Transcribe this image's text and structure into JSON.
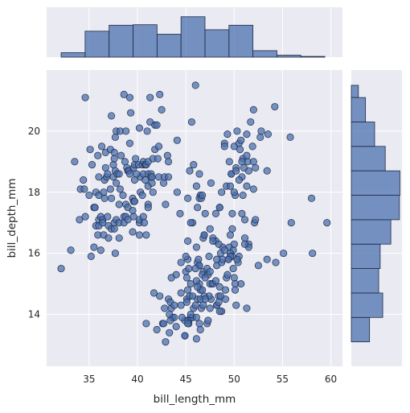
{
  "chart_data": {
    "type": "scatter",
    "subtype": "jointplot",
    "xlabel": "bill_length_mm",
    "ylabel": "bill_depth_mm",
    "xlim": [
      30.6,
      61.2
    ],
    "ylim": [
      12.3,
      22.0
    ],
    "xticks": [
      35,
      40,
      45,
      50,
      55,
      60
    ],
    "yticks": [
      14,
      16,
      18,
      20
    ],
    "grid": true,
    "colors": {
      "marker": "#4c72b0",
      "edge": "#1f2a44",
      "panel": "#eaeaf2",
      "grid": "#ffffff"
    },
    "points": [
      [
        32.1,
        15.5
      ],
      [
        33.1,
        16.1
      ],
      [
        33.5,
        19.0
      ],
      [
        34.0,
        17.1
      ],
      [
        34.1,
        18.1
      ],
      [
        34.4,
        18.4
      ],
      [
        34.5,
        18.1
      ],
      [
        34.6,
        21.1
      ],
      [
        34.6,
        17.2
      ],
      [
        35.0,
        17.9
      ],
      [
        35.1,
        19.4
      ],
      [
        35.2,
        15.9
      ],
      [
        35.3,
        18.9
      ],
      [
        35.5,
        16.2
      ],
      [
        35.5,
        17.5
      ],
      [
        35.6,
        17.5
      ],
      [
        35.7,
        16.9
      ],
      [
        35.7,
        18.0
      ],
      [
        35.9,
        19.2
      ],
      [
        35.9,
        16.6
      ],
      [
        36.0,
        18.5
      ],
      [
        36.0,
        17.9
      ],
      [
        36.0,
        17.1
      ],
      [
        36.0,
        16.9
      ],
      [
        36.2,
        17.2
      ],
      [
        36.2,
        16.1
      ],
      [
        36.3,
        19.5
      ],
      [
        36.4,
        17.1
      ],
      [
        36.4,
        17.0
      ],
      [
        36.5,
        18.0
      ],
      [
        36.5,
        16.6
      ],
      [
        36.6,
        17.8
      ],
      [
        36.6,
        18.4
      ],
      [
        36.7,
        19.3
      ],
      [
        36.7,
        18.8
      ],
      [
        36.8,
        18.5
      ],
      [
        36.9,
        18.6
      ],
      [
        37.0,
        16.9
      ],
      [
        37.0,
        16.5
      ],
      [
        37.2,
        18.1
      ],
      [
        37.2,
        19.4
      ],
      [
        37.3,
        20.5
      ],
      [
        37.3,
        17.8
      ],
      [
        37.3,
        16.8
      ],
      [
        37.5,
        18.9
      ],
      [
        37.5,
        18.5
      ],
      [
        37.6,
        19.1
      ],
      [
        37.6,
        17.0
      ],
      [
        37.6,
        19.3
      ],
      [
        37.7,
        18.7
      ],
      [
        37.7,
        16.0
      ],
      [
        37.7,
        19.8
      ],
      [
        37.8,
        18.3
      ],
      [
        37.8,
        17.1
      ],
      [
        37.8,
        20.0
      ],
      [
        37.9,
        18.6
      ],
      [
        38.1,
        18.6
      ],
      [
        38.1,
        17.6
      ],
      [
        38.1,
        16.5
      ],
      [
        38.1,
        17.0
      ],
      [
        38.2,
        18.1
      ],
      [
        38.2,
        20.0
      ],
      [
        38.3,
        19.2
      ],
      [
        38.5,
        17.9
      ],
      [
        38.6,
        21.2
      ],
      [
        38.6,
        17.2
      ],
      [
        38.6,
        17.0
      ],
      [
        38.7,
        19.0
      ],
      [
        38.8,
        17.2
      ],
      [
        38.8,
        20.0
      ],
      [
        38.8,
        17.6
      ],
      [
        38.9,
        18.8
      ],
      [
        39.0,
        17.5
      ],
      [
        39.0,
        18.7
      ],
      [
        39.0,
        17.1
      ],
      [
        39.1,
        18.7
      ],
      [
        39.2,
        19.6
      ],
      [
        39.2,
        18.6
      ],
      [
        39.2,
        21.1
      ],
      [
        39.3,
        20.6
      ],
      [
        39.5,
        17.4
      ],
      [
        39.5,
        16.7
      ],
      [
        39.5,
        17.8
      ],
      [
        39.6,
        17.7
      ],
      [
        39.6,
        18.8
      ],
      [
        39.6,
        17.2
      ],
      [
        39.7,
        18.4
      ],
      [
        39.7,
        17.7
      ],
      [
        39.7,
        18.9
      ],
      [
        39.8,
        19.1
      ],
      [
        40.1,
        18.9
      ],
      [
        40.2,
        17.0
      ],
      [
        40.2,
        20.1
      ],
      [
        40.2,
        17.1
      ],
      [
        40.3,
        18.0
      ],
      [
        40.3,
        18.5
      ],
      [
        40.5,
        17.9
      ],
      [
        40.5,
        18.9
      ],
      [
        40.6,
        18.6
      ],
      [
        40.6,
        17.2
      ],
      [
        40.6,
        19.0
      ],
      [
        40.7,
        17.0
      ],
      [
        40.8,
        18.4
      ],
      [
        40.8,
        18.9
      ],
      [
        40.9,
        16.6
      ],
      [
        40.9,
        18.9
      ],
      [
        41.0,
        20.0
      ],
      [
        41.1,
        17.6
      ],
      [
        41.1,
        18.2
      ],
      [
        41.1,
        19.0
      ],
      [
        41.1,
        18.6
      ],
      [
        41.1,
        17.5
      ],
      [
        41.3,
        20.3
      ],
      [
        41.3,
        21.1
      ],
      [
        41.4,
        18.6
      ],
      [
        41.4,
        18.5
      ],
      [
        41.5,
        18.3
      ],
      [
        41.5,
        18.5
      ],
      [
        41.6,
        18.0
      ],
      [
        41.6,
        19.1
      ],
      [
        41.8,
        19.4
      ],
      [
        41.8,
        20.2
      ],
      [
        42.0,
        20.2
      ],
      [
        42.1,
        19.1
      ],
      [
        42.2,
        18.5
      ],
      [
        42.2,
        19.5
      ],
      [
        42.3,
        21.2
      ],
      [
        42.5,
        20.7
      ],
      [
        42.7,
        18.3
      ],
      [
        42.8,
        18.5
      ],
      [
        42.9,
        17.6
      ],
      [
        43.1,
        19.2
      ],
      [
        43.2,
        18.5
      ],
      [
        43.2,
        19.0
      ],
      [
        44.1,
        18.0
      ],
      [
        44.1,
        19.7
      ],
      [
        45.6,
        20.3
      ],
      [
        45.8,
        18.9
      ],
      [
        46.0,
        21.5
      ],
      [
        45.4,
        18.7
      ],
      [
        46.5,
        17.9
      ],
      [
        47.0,
        17.3
      ],
      [
        47.5,
        16.8
      ],
      [
        46.4,
        18.6
      ],
      [
        45.2,
        17.8
      ],
      [
        46.1,
        18.2
      ],
      [
        45.7,
        17.0
      ],
      [
        46.2,
        17.5
      ],
      [
        46.9,
        16.6
      ],
      [
        45.5,
        17.0
      ],
      [
        46.4,
        17.8
      ],
      [
        48.5,
        17.5
      ],
      [
        46.8,
        16.5
      ],
      [
        47.6,
        18.3
      ],
      [
        48.1,
        16.4
      ],
      [
        46.6,
        17.8
      ],
      [
        47.8,
        16.5
      ],
      [
        49.3,
        19.9
      ],
      [
        49.8,
        17.3
      ],
      [
        50.9,
        19.1
      ],
      [
        51.7,
        20.3
      ],
      [
        49.7,
        18.6
      ],
      [
        50.0,
        19.5
      ],
      [
        50.5,
        19.6
      ],
      [
        49.0,
        19.6
      ],
      [
        51.3,
        18.2
      ],
      [
        52.7,
        19.8
      ],
      [
        50.6,
        19.4
      ],
      [
        51.3,
        19.9
      ],
      [
        52.0,
        18.1
      ],
      [
        50.8,
        18.5
      ],
      [
        51.4,
        19.0
      ],
      [
        50.7,
        19.7
      ],
      [
        52.0,
        19.0
      ],
      [
        49.5,
        19.0
      ],
      [
        50.8,
        19.0
      ],
      [
        53.5,
        19.9
      ],
      [
        52.8,
        20.0
      ],
      [
        54.2,
        20.8
      ],
      [
        51.5,
        18.7
      ],
      [
        49.2,
        18.2
      ],
      [
        50.3,
        20.0
      ],
      [
        51.9,
        19.5
      ],
      [
        50.2,
        18.8
      ],
      [
        50.1,
        17.9
      ],
      [
        51.0,
        18.8
      ],
      [
        49.6,
        18.2
      ],
      [
        50.5,
        18.4
      ],
      [
        49.0,
        19.5
      ],
      [
        52.2,
        18.8
      ],
      [
        48.1,
        17.3
      ],
      [
        48.7,
        18.0
      ],
      [
        49.7,
        18.6
      ],
      [
        50.9,
        17.9
      ],
      [
        46.7,
        17.9
      ],
      [
        48.5,
        17.5
      ],
      [
        51.3,
        19.2
      ],
      [
        52.0,
        20.7
      ],
      [
        53.4,
        18.7
      ],
      [
        55.8,
        19.8
      ],
      [
        58.0,
        17.8
      ],
      [
        50.0,
        18.0
      ],
      [
        50.2,
        18.7
      ],
      [
        51.1,
        17.1
      ],
      [
        46.2,
        14.5
      ],
      [
        48.2,
        14.3
      ],
      [
        45.1,
        14.5
      ],
      [
        46.5,
        14.8
      ],
      [
        49.5,
        16.2
      ],
      [
        50.0,
        15.2
      ],
      [
        45.2,
        14.8
      ],
      [
        48.7,
        14.1
      ],
      [
        50.7,
        15.0
      ],
      [
        43.5,
        14.2
      ],
      [
        46.8,
        15.4
      ],
      [
        45.2,
        15.8
      ],
      [
        48.4,
        14.6
      ],
      [
        49.9,
        16.1
      ],
      [
        47.6,
        14.5
      ],
      [
        46.2,
        15.7
      ],
      [
        46.4,
        15.0
      ],
      [
        43.6,
        13.9
      ],
      [
        49.2,
        15.2
      ],
      [
        46.6,
        14.2
      ],
      [
        47.7,
        15.0
      ],
      [
        48.2,
        15.6
      ],
      [
        46.5,
        13.5
      ],
      [
        46.4,
        15.6
      ],
      [
        40.9,
        13.7
      ],
      [
        49.1,
        14.8
      ],
      [
        42.6,
        13.7
      ],
      [
        44.4,
        17.3
      ],
      [
        44.0,
        13.6
      ],
      [
        44.9,
        13.3
      ],
      [
        45.5,
        13.9
      ],
      [
        45.2,
        13.8
      ],
      [
        43.3,
        13.4
      ],
      [
        45.3,
        13.7
      ],
      [
        44.5,
        14.3
      ],
      [
        46.1,
        13.2
      ],
      [
        47.2,
        13.7
      ],
      [
        50.0,
        16.3
      ],
      [
        48.2,
        14.3
      ],
      [
        50.4,
        15.7
      ],
      [
        54.3,
        15.7
      ],
      [
        58.1,
        16.0
      ],
      [
        49.4,
        15.8
      ],
      [
        55.1,
        16.0
      ],
      [
        50.8,
        17.3
      ],
      [
        59.6,
        17.0
      ],
      [
        55.9,
        17.0
      ],
      [
        52.1,
        17.0
      ],
      [
        48.8,
        16.2
      ],
      [
        49.8,
        16.8
      ],
      [
        53.4,
        15.8
      ],
      [
        52.5,
        15.6
      ],
      [
        50.5,
        15.9
      ],
      [
        51.5,
        16.3
      ],
      [
        50.1,
        15.0
      ],
      [
        49.6,
        16.0
      ],
      [
        48.6,
        16.0
      ],
      [
        47.2,
        15.5
      ],
      [
        45.2,
        16.4
      ],
      [
        48.4,
        16.3
      ],
      [
        47.4,
        14.6
      ],
      [
        51.1,
        16.5
      ],
      [
        52.2,
        17.1
      ],
      [
        45.5,
        15.0
      ],
      [
        46.9,
        14.6
      ],
      [
        49.0,
        16.1
      ],
      [
        47.5,
        15.0
      ],
      [
        47.3,
        13.8
      ],
      [
        46.7,
        15.3
      ],
      [
        43.2,
        14.5
      ],
      [
        45.4,
        14.6
      ],
      [
        45.3,
        13.8
      ],
      [
        43.8,
        13.9
      ],
      [
        42.9,
        13.1
      ],
      [
        46.1,
        15.1
      ],
      [
        47.8,
        15.0
      ],
      [
        42.8,
        14.2
      ],
      [
        45.0,
        15.4
      ],
      [
        45.7,
        13.9
      ],
      [
        46.5,
        14.5
      ],
      [
        47.3,
        15.3
      ],
      [
        44.9,
        13.8
      ],
      [
        48.4,
        14.4
      ],
      [
        45.1,
        14.4
      ],
      [
        46.4,
        15.6
      ],
      [
        47.5,
        14.2
      ],
      [
        42.7,
        13.7
      ],
      [
        43.4,
        14.4
      ],
      [
        46.3,
        15.8
      ],
      [
        49.1,
        14.5
      ],
      [
        48.7,
        15.7
      ],
      [
        44.5,
        15.7
      ],
      [
        45.8,
        14.2
      ],
      [
        50.2,
        14.3
      ],
      [
        47.0,
        15.2
      ],
      [
        40.2,
        16.6
      ],
      [
        36.9,
        17.2
      ],
      [
        50.3,
        15.8
      ],
      [
        37.6,
        16.8
      ],
      [
        51.5,
        16.2
      ],
      [
        39.9,
        18.6
      ],
      [
        46.4,
        13.7
      ],
      [
        48.8,
        15.8
      ],
      [
        44.9,
        13.3
      ],
      [
        48.5,
        14.1
      ],
      [
        45.7,
        14.6
      ],
      [
        42.0,
        13.5
      ],
      [
        43.3,
        14.0
      ],
      [
        45.1,
        15.2
      ],
      [
        46.7,
        14.8
      ],
      [
        49.8,
        15.9
      ],
      [
        45.3,
        15.5
      ],
      [
        51.1,
        16.3
      ],
      [
        49.6,
        15.9
      ],
      [
        45.5,
        14.0
      ],
      [
        41.7,
        14.7
      ],
      [
        48.2,
        15.8
      ],
      [
        44.5,
        14.7
      ],
      [
        46.9,
        16.6
      ],
      [
        51.3,
        14.2
      ],
      [
        46.0,
        14.3
      ],
      [
        48.6,
        14.6
      ],
      [
        47.8,
        16.4
      ],
      [
        49.4,
        15.8
      ],
      [
        46.2,
        14.9
      ],
      [
        49.3,
        15.3
      ],
      [
        43.8,
        14.3
      ],
      [
        46.0,
        15.5
      ],
      [
        49.9,
        15.5
      ],
      [
        44.0,
        15.3
      ],
      [
        46.1,
        16.2
      ],
      [
        48.5,
        14.9
      ],
      [
        50.1,
        14.8
      ],
      [
        45.0,
        15.9
      ],
      [
        43.5,
        15.2
      ],
      [
        47.4,
        15.9
      ],
      [
        42.3,
        14.6
      ],
      [
        49.6,
        16.6
      ],
      [
        46.1,
        13.9
      ],
      [
        45.2,
        13.7
      ],
      [
        47.0,
        14.5
      ],
      [
        47.5,
        15.4
      ],
      [
        44.6,
        13.9
      ],
      [
        43.4,
        13.8
      ],
      [
        48.1,
        15.1
      ],
      [
        46.8,
        14.3
      ]
    ],
    "marginal_x": {
      "edges": [
        32.1,
        34.58,
        37.06,
        39.54,
        42.02,
        44.5,
        46.98,
        49.46,
        51.94,
        54.42,
        56.9,
        59.38
      ],
      "heights": [
        0.09,
        0.52,
        0.64,
        0.65,
        0.46,
        0.81,
        0.55,
        0.64,
        0.13,
        0.04,
        0.015
      ]
    },
    "marginal_y": {
      "edges": [
        13.1,
        13.9,
        14.7,
        15.5,
        16.3,
        17.1,
        17.9,
        18.7,
        19.5,
        20.3,
        21.1,
        21.5
      ],
      "widths": [
        0.36,
        0.62,
        0.54,
        0.57,
        0.78,
        0.95,
        0.96,
        0.67,
        0.46,
        0.28,
        0.14
      ]
    }
  }
}
